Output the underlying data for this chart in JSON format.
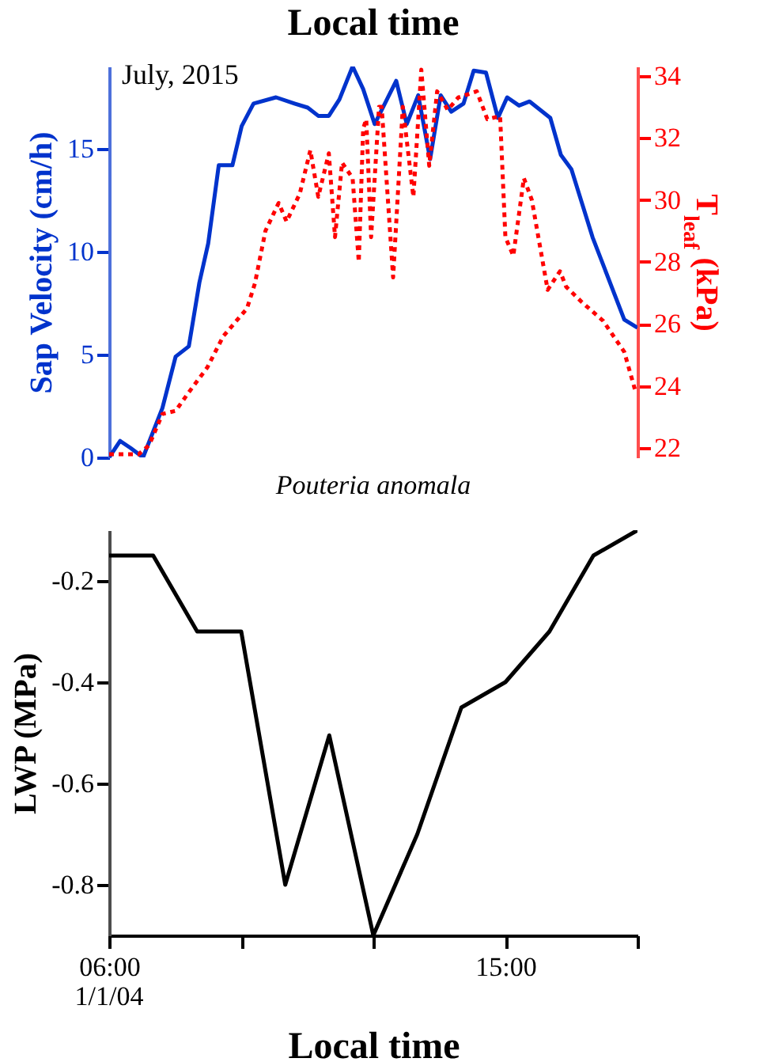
{
  "chart_data": [
    {
      "type": "line",
      "title": "Local time",
      "annotations": [
        "July, 2015",
        "Pouteria anomala"
      ],
      "ylabel": "Sap Velocity (cm/h)",
      "y2label": "T$_{leaf}$ (kPa)",
      "xlim": [
        6,
        18
      ],
      "ylim": [
        0,
        19
      ],
      "yticks": [
        0,
        5,
        10,
        15
      ],
      "y2lim": [
        21.7,
        34.3
      ],
      "y2ticks": [
        22,
        24,
        26,
        28,
        30,
        32,
        34
      ],
      "tick_labels": "y",
      "series": [
        {
          "color": "#0033cc",
          "x": [
            6.0,
            6.25,
            6.49,
            6.77,
            7.21,
            7.51,
            7.81,
            8.05,
            8.25,
            8.49,
            8.8,
            9.01,
            9.28,
            9.79,
            10.21,
            10.51,
            10.75,
            10.99,
            11.23,
            11.53,
            11.77,
            12.03,
            12.52,
            12.76,
            13.02,
            13.29,
            13.53,
            13.77,
            14.05,
            14.28,
            14.56,
            14.83,
            15.04,
            15.31,
            15.55,
            16.02,
            16.26,
            16.5,
            16.98,
            17.7,
            18.0
          ],
          "values": [
            0,
            0.8,
            0.45,
            0,
            2.4,
            4.9,
            5.4,
            8.5,
            10.4,
            14.2,
            14.2,
            16.1,
            17.2,
            17.5,
            17.2,
            17.0,
            16.6,
            16.6,
            17.4,
            19.0,
            17.9,
            16.2,
            18.3,
            16.2,
            17.6,
            14.5,
            17.6,
            16.8,
            17.2,
            18.8,
            18.7,
            16.5,
            17.5,
            17.1,
            17.3,
            16.5,
            14.7,
            14.0,
            10.7,
            6.7,
            6.3
          ]
        },
        {
          "color": "#ff0000",
          "axis": "y2",
          "line_style": "dotted",
          "x": [
            6.0,
            6.31,
            6.67,
            6.91,
            7.21,
            7.51,
            7.81,
            8.23,
            8.59,
            9.13,
            9.31,
            9.55,
            9.85,
            10.03,
            10.33,
            10.57,
            10.75,
            10.99,
            11.13,
            11.29,
            11.53,
            11.67,
            11.77,
            11.84,
            11.95,
            12.13,
            12.19,
            12.45,
            12.67,
            12.91,
            13.09,
            13.27,
            13.45,
            13.69,
            13.93,
            14.35,
            14.59,
            14.88,
            15.0,
            15.18,
            15.42,
            15.6,
            15.96,
            16.24,
            16.38,
            16.74,
            17.22,
            17.7,
            17.94
          ],
          "values": [
            21.8,
            21.8,
            21.8,
            22.1,
            23.1,
            23.2,
            23.8,
            24.6,
            25.6,
            26.5,
            27.3,
            29.0,
            29.9,
            29.3,
            30.2,
            31.6,
            30.1,
            31.5,
            28.8,
            31.2,
            30.7,
            28.0,
            32.3,
            32.6,
            28.8,
            33.0,
            33.0,
            27.5,
            33.0,
            30.1,
            34.2,
            31.1,
            33.5,
            32.9,
            33.3,
            33.5,
            32.6,
            32.7,
            28.8,
            28.2,
            30.7,
            30.0,
            27.1,
            27.7,
            27.2,
            26.7,
            26.1,
            25.1,
            23.9
          ]
        }
      ]
    },
    {
      "type": "line",
      "xlabel": "Local time",
      "ylabel": "LWP (MPa)",
      "annotations": [
        "1/1/04"
      ],
      "xlim": [
        6,
        18
      ],
      "xticks": [
        {
          "value": 6,
          "label": "06:00"
        },
        {
          "value": 9,
          "label": null
        },
        {
          "value": 12,
          "label": null
        },
        {
          "value": 15,
          "label": "15:00"
        },
        {
          "value": 18,
          "label": null
        }
      ],
      "ylim": [
        -0.9,
        -0.1
      ],
      "yticks": [
        -0.2,
        -0.4,
        -0.6,
        -0.8
      ],
      "series": [
        {
          "color": "#000000",
          "x": [
            6,
            7,
            8,
            9,
            10,
            11,
            12,
            13,
            14,
            15,
            16,
            17,
            18
          ],
          "values": [
            -0.15,
            -0.15,
            -0.3,
            -0.3,
            -0.8,
            -0.505,
            -0.9,
            -0.7,
            -0.45,
            -0.4,
            -0.3,
            -0.15,
            -0.1
          ]
        }
      ]
    }
  ]
}
